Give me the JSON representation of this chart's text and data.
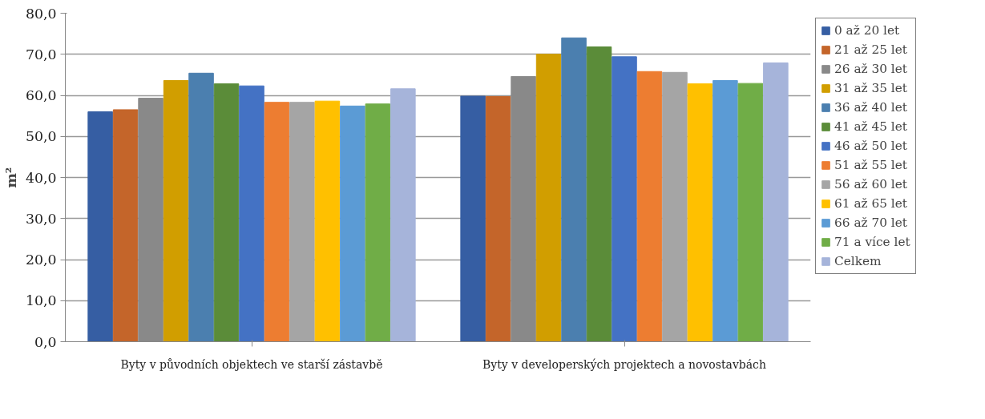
{
  "chart_data": {
    "type": "bar",
    "ylabel": "m²",
    "categories": [
      "Byty v původních objektech ve starší zástavbě",
      "Byty v developerských projektech a novostavbách"
    ],
    "series": [
      {
        "name": "0 až 20 let",
        "color": "#365ea3",
        "values": [
          56.0,
          59.8
        ]
      },
      {
        "name": "21 až 25 let",
        "color": "#c4652a",
        "values": [
          56.5,
          59.7
        ]
      },
      {
        "name": "26 až 30 let",
        "color": "#898989",
        "values": [
          59.3,
          64.6
        ]
      },
      {
        "name": "31 až 35 let",
        "color": "#d19e00",
        "values": [
          63.6,
          70.0
        ]
      },
      {
        "name": "36 až 40 let",
        "color": "#4b7faf",
        "values": [
          65.4,
          74.0
        ]
      },
      {
        "name": "41 až 45 let",
        "color": "#5b8c39",
        "values": [
          62.8,
          71.8
        ]
      },
      {
        "name": "46 až 50 let",
        "color": "#4472c4",
        "values": [
          62.3,
          69.4
        ]
      },
      {
        "name": "51 až 55 let",
        "color": "#ed7d31",
        "values": [
          58.3,
          65.8
        ]
      },
      {
        "name": "56 až 60 let",
        "color": "#a5a5a5",
        "values": [
          58.3,
          65.6
        ]
      },
      {
        "name": "61 až 65 let",
        "color": "#ffc000",
        "values": [
          58.6,
          62.8
        ]
      },
      {
        "name": "66 až 70 let",
        "color": "#5b9bd5",
        "values": [
          57.4,
          63.6
        ]
      },
      {
        "name": "71 a více let",
        "color": "#70ad47",
        "values": [
          57.9,
          62.9
        ]
      },
      {
        "name": "Celkem",
        "color": "#a6b4da",
        "values": [
          61.6,
          67.9
        ]
      }
    ],
    "ylim": [
      0,
      80
    ],
    "yticks": [
      {
        "value": 0,
        "label": "0,0"
      },
      {
        "value": 10,
        "label": "10,0"
      },
      {
        "value": 20,
        "label": "20,0"
      },
      {
        "value": 30,
        "label": "30,0"
      },
      {
        "value": 40,
        "label": "40,0"
      },
      {
        "value": 50,
        "label": "50,0"
      },
      {
        "value": 60,
        "label": "60,0"
      },
      {
        "value": 70,
        "label": "70,0"
      },
      {
        "value": 80,
        "label": "80,0"
      }
    ],
    "grid": "y",
    "legend": "right"
  }
}
